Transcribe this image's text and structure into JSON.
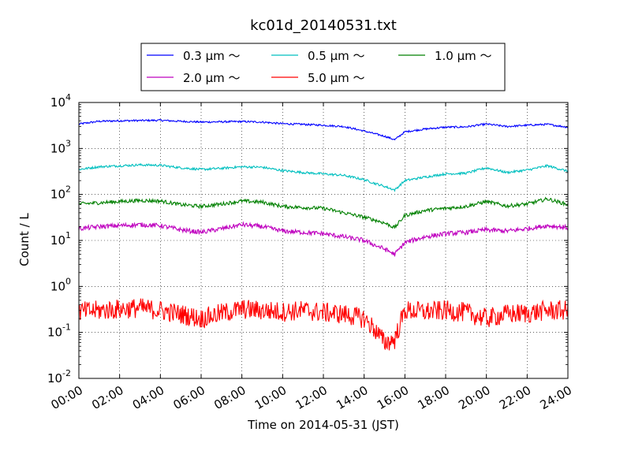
{
  "chart_data": {
    "type": "line",
    "title": "kc01d_20140531.txt",
    "xlabel": "Time on 2014-05-31 (JST)",
    "ylabel": "Count / L",
    "yscale": "log",
    "ylim": [
      0.01,
      10000
    ],
    "xlim": [
      "00:00",
      "24:00"
    ],
    "xticks": [
      "00:00",
      "02:00",
      "04:00",
      "06:00",
      "08:00",
      "10:00",
      "12:00",
      "14:00",
      "16:00",
      "18:00",
      "20:00",
      "22:00",
      "24:00"
    ],
    "yticks": [
      {
        "base": "10",
        "exp": "-2",
        "value": 0.01
      },
      {
        "base": "10",
        "exp": "-1",
        "value": 0.1
      },
      {
        "base": "10",
        "exp": "0",
        "value": 1
      },
      {
        "base": "10",
        "exp": "1",
        "value": 10
      },
      {
        "base": "10",
        "exp": "2",
        "value": 100
      },
      {
        "base": "10",
        "exp": "3",
        "value": 1000
      },
      {
        "base": "10",
        "exp": "4",
        "value": 10000
      }
    ],
    "grid": true,
    "legend_placement": "top-center",
    "x": [
      "00:00",
      "01:00",
      "02:00",
      "03:00",
      "04:00",
      "05:00",
      "06:00",
      "07:00",
      "08:00",
      "09:00",
      "10:00",
      "11:00",
      "12:00",
      "13:00",
      "14:00",
      "14:30",
      "15:00",
      "15:30",
      "16:00",
      "17:00",
      "18:00",
      "19:00",
      "20:00",
      "21:00",
      "22:00",
      "23:00",
      "24:00"
    ],
    "series": [
      {
        "name": "0.3 μm ～",
        "color": "#0000ff",
        "noise": 0.02,
        "values": [
          3400,
          3900,
          4000,
          4050,
          4100,
          3900,
          3750,
          3800,
          3850,
          3750,
          3450,
          3350,
          3200,
          3000,
          2400,
          2100,
          1850,
          1550,
          2300,
          2650,
          2900,
          2950,
          3400,
          3000,
          3200,
          3350,
          2900
        ]
      },
      {
        "name": "0.5 μm ～",
        "color": "#00bfbf",
        "noise": 0.025,
        "values": [
          350,
          400,
          420,
          440,
          430,
          380,
          350,
          370,
          400,
          390,
          330,
          300,
          280,
          260,
          210,
          175,
          150,
          125,
          200,
          240,
          280,
          290,
          380,
          300,
          340,
          420,
          320
        ]
      },
      {
        "name": "1.0 μm ～",
        "color": "#008000",
        "noise": 0.04,
        "values": [
          62,
          66,
          70,
          74,
          72,
          60,
          55,
          62,
          72,
          68,
          55,
          52,
          50,
          40,
          32,
          28,
          24,
          19,
          35,
          45,
          50,
          55,
          70,
          56,
          62,
          80,
          60
        ]
      },
      {
        "name": "2.0 μm ～",
        "color": "#bf00bf",
        "noise": 0.05,
        "values": [
          18,
          20,
          21,
          22,
          21,
          17,
          15,
          18,
          22,
          20,
          16,
          15,
          14,
          12,
          10,
          8,
          6.5,
          5,
          9,
          12,
          14,
          15,
          17,
          16,
          18,
          21,
          19
        ]
      },
      {
        "name": "5.0 μm ～",
        "color": "#ff0000",
        "noise": 0.22,
        "values": [
          0.28,
          0.3,
          0.32,
          0.34,
          0.3,
          0.25,
          0.2,
          0.26,
          0.32,
          0.3,
          0.28,
          0.3,
          0.27,
          0.25,
          0.2,
          0.12,
          0.06,
          0.07,
          0.3,
          0.28,
          0.3,
          0.27,
          0.2,
          0.25,
          0.26,
          0.3,
          0.3
        ]
      }
    ]
  }
}
